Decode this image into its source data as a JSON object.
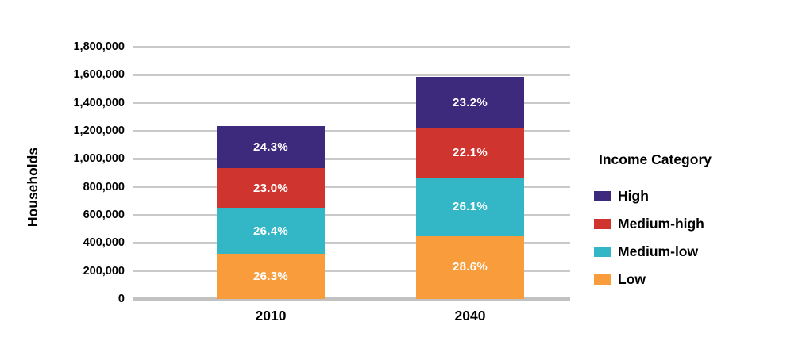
{
  "chart_data": {
    "type": "bar",
    "stacked": true,
    "title": "",
    "xlabel": "",
    "ylabel": "Households",
    "ylim": [
      0,
      1800000
    ],
    "ytick_step": 200000,
    "ytick_labels": [
      "0",
      "200,000",
      "400,000",
      "600,000",
      "800,000",
      "1,000,000",
      "1,200,000",
      "1,400,000",
      "1,600,000",
      "1,800,000"
    ],
    "grid": true,
    "categories": [
      "2010",
      "2040"
    ],
    "totals_estimated": [
      1232000,
      1585000
    ],
    "series": [
      {
        "name": "Low",
        "color": "#F89C3C",
        "percent_labels": [
          "26.3%",
          "28.6%"
        ],
        "values": [
          324000,
          453300
        ]
      },
      {
        "name": "Medium-low",
        "color": "#33B6C5",
        "percent_labels": [
          "26.4%",
          "26.1%"
        ],
        "values": [
          325200,
          413700
        ]
      },
      {
        "name": "Medium-high",
        "color": "#D0342F",
        "percent_labels": [
          "23.0%",
          "22.1%"
        ],
        "values": [
          283400,
          350300
        ]
      },
      {
        "name": "High",
        "color": "#3E2A7C",
        "percent_labels": [
          "24.3%",
          "23.2%"
        ],
        "values": [
          299400,
          367700
        ]
      }
    ],
    "legend": {
      "title": "Income Category",
      "position": "right",
      "items": [
        "High",
        "Medium-high",
        "Medium-low",
        "Low"
      ]
    }
  },
  "colors": {
    "background": "#ffffff",
    "gridline": "#c9c9c9",
    "axis_text": "#000000",
    "segment_label_text": "#ffffff"
  }
}
